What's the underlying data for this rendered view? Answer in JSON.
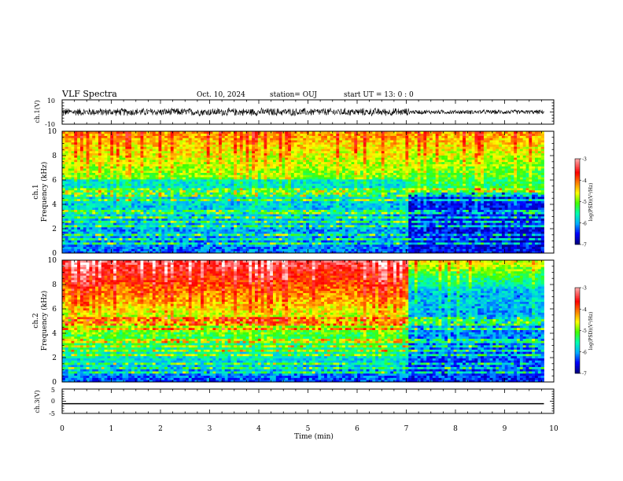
{
  "header": {
    "title": "VLF Spectra",
    "date": "Oct. 10, 2024",
    "station": "station= OUJ",
    "start": "start  UT =   13: 0  : 0"
  },
  "chart_data": [
    {
      "type": "line",
      "panel": "ch1-waveform",
      "ylabel": "ch.1(V)",
      "ylim": [
        -10,
        10
      ],
      "yticks": [
        "10",
        "-10"
      ],
      "series": [
        {
          "amplitude_before_7min": 3.5,
          "amplitude_after_7min": 2.0,
          "offset": 0
        }
      ]
    },
    {
      "type": "heatmap",
      "panel": "ch1-spectrogram",
      "channel_label": "ch.1",
      "ylabel": "Frequency (kHz)",
      "ylim": [
        0,
        10
      ],
      "yticks": [
        "0",
        "2",
        "4",
        "6",
        "8",
        "10"
      ],
      "colorbar": {
        "label": "log(PSD)(V²/Hz)",
        "range": [
          -7,
          -3
        ],
        "ticks": [
          "-3",
          "-4",
          "-5",
          "-6",
          "-7"
        ]
      }
    },
    {
      "type": "heatmap",
      "panel": "ch2-spectrogram",
      "channel_label": "ch.2",
      "ylabel": "Frequency (kHz)",
      "ylim": [
        0,
        10
      ],
      "yticks": [
        "0",
        "2",
        "4",
        "6",
        "8",
        "10"
      ],
      "colorbar": {
        "label": "log(PSD)(V²/Hz)",
        "range": [
          -7,
          -3
        ],
        "ticks": [
          "-3",
          "-4",
          "-5",
          "-6",
          "-7"
        ]
      }
    },
    {
      "type": "line",
      "panel": "ch3-waveform",
      "ylabel": "ch.3(V)",
      "ylim": [
        -5,
        5
      ],
      "yticks": [
        "5",
        "0",
        "-5"
      ],
      "series": [
        {
          "constant_value": -1.0
        }
      ]
    }
  ],
  "xaxis": {
    "label": "Time (min)",
    "range": [
      0,
      10
    ],
    "ticks": [
      "0",
      "1",
      "2",
      "3",
      "4",
      "5",
      "6",
      "7",
      "8",
      "9",
      "10"
    ],
    "data_end": 9.8,
    "regime_change_at": 7.05
  },
  "colors": {
    "colormap": [
      "#000080",
      "#0000ff",
      "#00b0ff",
      "#00ffb0",
      "#40ff00",
      "#ffff00",
      "#ff8000",
      "#ff0000",
      "#ff8080",
      "#ffffff"
    ],
    "axis": "#000000",
    "trace": "#000000"
  }
}
